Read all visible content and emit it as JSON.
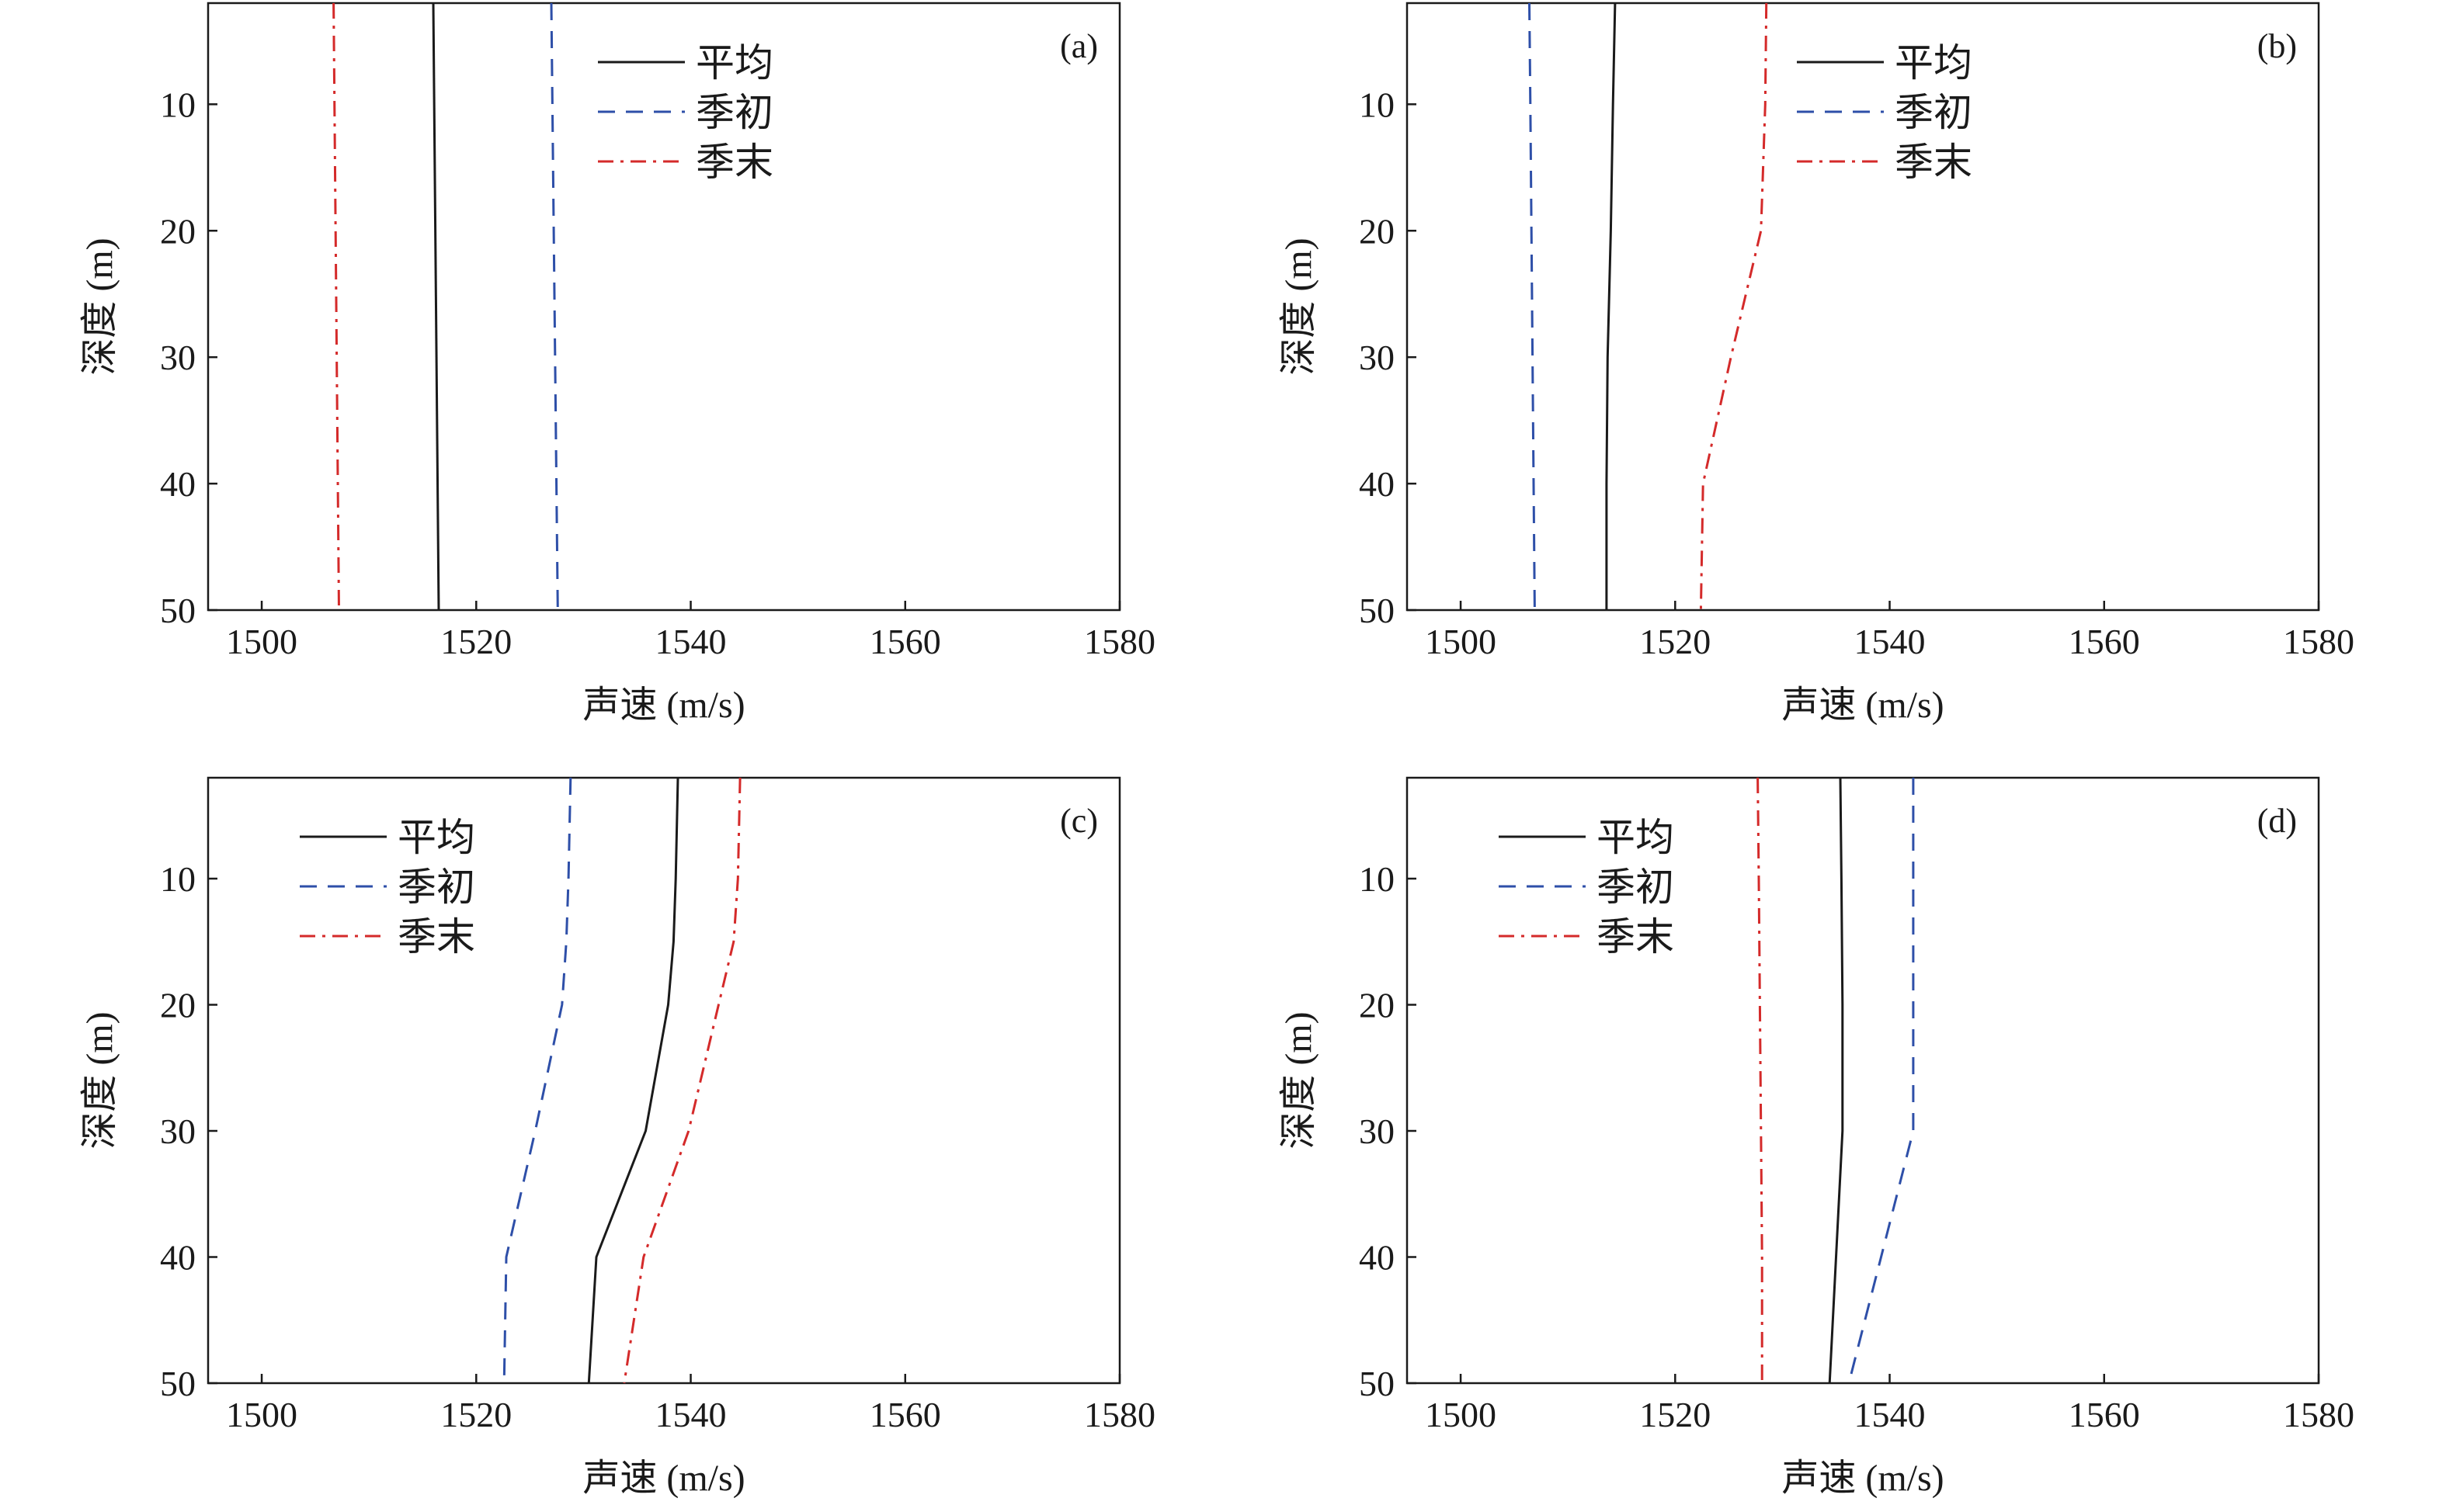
{
  "chart_data": [
    {
      "type": "line",
      "panel_label": "(a)",
      "xlabel": "声速 (m/s)",
      "ylabel": "深度 (m)",
      "xlim": [
        1495,
        1580
      ],
      "ylim": [
        2,
        50
      ],
      "y_inverted": true,
      "xticks": [
        1500,
        1520,
        1540,
        1560,
        1580
      ],
      "yticks": [
        10,
        20,
        30,
        40,
        50
      ],
      "grid": false,
      "legend_position": "top-center",
      "series": [
        {
          "name": "平均",
          "color": "#1a1a1a",
          "dash": "solid",
          "points": [
            [
              1516.0,
              2
            ],
            [
              1516.5,
              50
            ]
          ]
        },
        {
          "name": "季初",
          "color": "#2e4fa8",
          "dash": "dashed",
          "points": [
            [
              1527.0,
              2
            ],
            [
              1527.6,
              50
            ]
          ]
        },
        {
          "name": "季末",
          "color": "#d42a2a",
          "dash": "dashdot",
          "points": [
            [
              1506.7,
              2
            ],
            [
              1507.2,
              50
            ]
          ]
        }
      ]
    },
    {
      "type": "line",
      "panel_label": "(b)",
      "xlabel": "声速 (m/s)",
      "ylabel": "深度 (m)",
      "xlim": [
        1495,
        1580
      ],
      "ylim": [
        2,
        50
      ],
      "y_inverted": true,
      "xticks": [
        1500,
        1520,
        1540,
        1560,
        1580
      ],
      "yticks": [
        10,
        20,
        30,
        40,
        50
      ],
      "grid": false,
      "legend_position": "top-center",
      "series": [
        {
          "name": "平均",
          "color": "#1a1a1a",
          "dash": "solid",
          "points": [
            [
              1514.4,
              2
            ],
            [
              1514.2,
              10
            ],
            [
              1514.0,
              20
            ],
            [
              1513.7,
              30
            ],
            [
              1513.6,
              40
            ],
            [
              1513.6,
              50
            ]
          ]
        },
        {
          "name": "季初",
          "color": "#2e4fa8",
          "dash": "dashed",
          "points": [
            [
              1506.4,
              2
            ],
            [
              1506.5,
              10
            ],
            [
              1506.6,
              20
            ],
            [
              1506.7,
              30
            ],
            [
              1506.8,
              40
            ],
            [
              1506.9,
              50
            ]
          ]
        },
        {
          "name": "季末",
          "color": "#d42a2a",
          "dash": "dashdot",
          "points": [
            [
              1528.5,
              2
            ],
            [
              1528.4,
              10
            ],
            [
              1528.0,
              20
            ],
            [
              1525.2,
              30
            ],
            [
              1522.6,
              40
            ],
            [
              1522.4,
              50
            ]
          ]
        }
      ]
    },
    {
      "type": "line",
      "panel_label": "(c)",
      "xlabel": "声速 (m/s)",
      "ylabel": "深度 (m)",
      "xlim": [
        1495,
        1580
      ],
      "ylim": [
        2,
        50
      ],
      "y_inverted": true,
      "xticks": [
        1500,
        1520,
        1540,
        1560,
        1580
      ],
      "yticks": [
        10,
        20,
        30,
        40,
        50
      ],
      "grid": false,
      "legend_position": "top-left",
      "series": [
        {
          "name": "平均",
          "color": "#1a1a1a",
          "dash": "solid",
          "points": [
            [
              1538.8,
              2
            ],
            [
              1538.6,
              10
            ],
            [
              1538.4,
              15
            ],
            [
              1537.9,
              20
            ],
            [
              1535.8,
              30
            ],
            [
              1531.2,
              40
            ],
            [
              1530.5,
              50
            ]
          ]
        },
        {
          "name": "季初",
          "color": "#2e4fa8",
          "dash": "dashed",
          "points": [
            [
              1528.8,
              2
            ],
            [
              1528.6,
              10
            ],
            [
              1528.4,
              15
            ],
            [
              1528.0,
              20
            ],
            [
              1525.5,
              30
            ],
            [
              1522.8,
              40
            ],
            [
              1522.6,
              50
            ]
          ]
        },
        {
          "name": "季末",
          "color": "#d42a2a",
          "dash": "dashdot",
          "points": [
            [
              1544.6,
              2
            ],
            [
              1544.4,
              10
            ],
            [
              1544.0,
              15
            ],
            [
              1542.6,
              20
            ],
            [
              1539.8,
              30
            ],
            [
              1535.6,
              40
            ],
            [
              1533.8,
              50
            ]
          ]
        }
      ]
    },
    {
      "type": "line",
      "panel_label": "(d)",
      "xlabel": "声速 (m/s)",
      "ylabel": "深度 (m)",
      "xlim": [
        1495,
        1580
      ],
      "ylim": [
        2,
        50
      ],
      "y_inverted": true,
      "xticks": [
        1500,
        1520,
        1540,
        1560,
        1580
      ],
      "yticks": [
        10,
        20,
        30,
        40,
        50
      ],
      "grid": false,
      "legend_position": "top-left",
      "series": [
        {
          "name": "平均",
          "color": "#1a1a1a",
          "dash": "solid",
          "points": [
            [
              1535.4,
              2
            ],
            [
              1535.5,
              10
            ],
            [
              1535.6,
              20
            ],
            [
              1535.6,
              30
            ],
            [
              1535.0,
              40
            ],
            [
              1534.4,
              50
            ]
          ]
        },
        {
          "name": "季初",
          "color": "#2e4fa8",
          "dash": "dashed",
          "points": [
            [
              1542.2,
              2
            ],
            [
              1542.2,
              10
            ],
            [
              1542.2,
              20
            ],
            [
              1542.2,
              30
            ],
            [
              1539.2,
              40
            ],
            [
              1536.2,
              50
            ]
          ]
        },
        {
          "name": "季末",
          "color": "#d42a2a",
          "dash": "dashdot",
          "points": [
            [
              1527.7,
              2
            ],
            [
              1527.8,
              10
            ],
            [
              1527.9,
              20
            ],
            [
              1528.0,
              30
            ],
            [
              1528.1,
              40
            ],
            [
              1528.1,
              50
            ]
          ]
        }
      ]
    }
  ]
}
